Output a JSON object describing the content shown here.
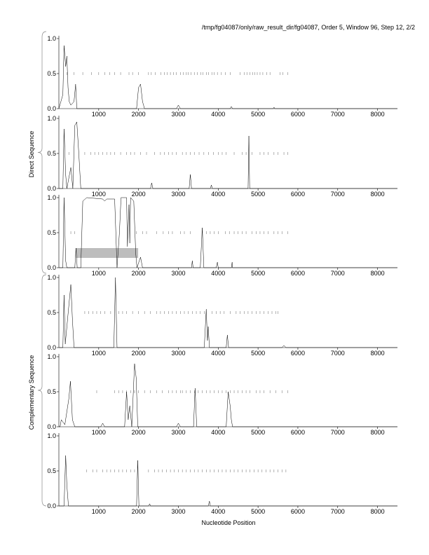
{
  "title": "/tmp/fg04087/only/raw_result_dir/fg04087, Order 5, Window 96, Step 12, 2/2",
  "xlabel": "Nucleotide Position",
  "group_labels": [
    "Direct Sequence",
    "Complementary Sequence"
  ],
  "chart_data": {
    "type": "line",
    "title": "/tmp/fg04087/only/raw_result_dir/fg04087, Order 5, Window 96, Step 12, 2/2",
    "xlabel": "Nucleotide Position",
    "xlim": [
      0,
      8500
    ],
    "ylim": [
      0,
      1
    ],
    "xticks": [
      1000,
      2000,
      3000,
      4000,
      5000,
      6000,
      7000,
      8000
    ],
    "yticks": [
      "0.0",
      "0.5",
      "1.0"
    ],
    "panels": [
      {
        "group": "Direct Sequence",
        "trace": [
          [
            0,
            0
          ],
          [
            100,
            0.2
          ],
          [
            130,
            0.9
          ],
          [
            170,
            0.6
          ],
          [
            200,
            0.75
          ],
          [
            230,
            0.3
          ],
          [
            260,
            0.1
          ],
          [
            300,
            0.05
          ],
          [
            380,
            0.1
          ],
          [
            420,
            0.35
          ],
          [
            450,
            0
          ],
          [
            1950,
            0
          ],
          [
            2000,
            0.3
          ],
          [
            2050,
            0.35
          ],
          [
            2100,
            0.1
          ],
          [
            2150,
            0
          ],
          [
            2950,
            0
          ],
          [
            3000,
            0.05
          ],
          [
            3050,
            0
          ],
          [
            4300,
            0
          ],
          [
            4330,
            0.03
          ],
          [
            4360,
            0
          ],
          [
            5380,
            0
          ],
          [
            5400,
            0.02
          ],
          [
            5420,
            0
          ],
          [
            8500,
            0
          ]
        ],
        "ticks": [
          200,
          380,
          600,
          820,
          1000,
          1150,
          1280,
          1400,
          1550,
          1760,
          1850,
          2000,
          2250,
          2320,
          2420,
          2560,
          2650,
          2720,
          2800,
          2880,
          2950,
          3050,
          3120,
          3200,
          3250,
          3320,
          3400,
          3480,
          3560,
          3620,
          3700,
          3760,
          3840,
          3900,
          3980,
          4080,
          4180,
          4300,
          4550,
          4650,
          4720,
          4800,
          4870,
          4920,
          4980,
          5050,
          5120,
          5220,
          5300,
          5550,
          5620,
          5750
        ]
      },
      {
        "group": "Direct Sequence",
        "trace": [
          [
            0,
            0
          ],
          [
            100,
            0
          ],
          [
            130,
            0.85
          ],
          [
            170,
            0.2
          ],
          [
            200,
            0
          ],
          [
            300,
            0.3
          ],
          [
            350,
            0
          ],
          [
            400,
            0.9
          ],
          [
            450,
            0.95
          ],
          [
            500,
            0.5
          ],
          [
            550,
            0
          ],
          [
            2300,
            0
          ],
          [
            2330,
            0.08
          ],
          [
            2360,
            0
          ],
          [
            3270,
            0
          ],
          [
            3300,
            0.2
          ],
          [
            3330,
            0
          ],
          [
            3800,
            0
          ],
          [
            3830,
            0.05
          ],
          [
            3850,
            0
          ],
          [
            4750,
            0
          ],
          [
            4770,
            0.75
          ],
          [
            4790,
            0
          ],
          [
            8500,
            0
          ]
        ],
        "ticks": [
          250,
          650,
          800,
          900,
          1000,
          1100,
          1200,
          1300,
          1400,
          1550,
          1700,
          1800,
          1900,
          2050,
          2200,
          2400,
          2550,
          2650,
          2750,
          2850,
          2950,
          3100,
          3200,
          3300,
          3400,
          3520,
          3640,
          3760,
          3880,
          4000,
          4100,
          4200,
          4400,
          4600,
          4700,
          4850,
          5050,
          5150,
          5250,
          5400,
          5500,
          5650,
          5750
        ]
      },
      {
        "group": "Direct Sequence",
        "trace": [
          [
            0,
            0
          ],
          [
            100,
            0
          ],
          [
            130,
            1
          ],
          [
            170,
            0.1
          ],
          [
            200,
            0
          ],
          [
            400,
            0
          ],
          [
            430,
            0.28
          ],
          [
            460,
            0
          ],
          [
            550,
            0
          ],
          [
            600,
            0.95
          ],
          [
            700,
            1
          ],
          [
            1100,
            0.98
          ],
          [
            1150,
            0.95
          ],
          [
            1200,
            0.98
          ],
          [
            1400,
            0.98
          ],
          [
            1430,
            0.5
          ],
          [
            1460,
            0
          ],
          [
            1520,
            0.5
          ],
          [
            1560,
            1
          ],
          [
            1700,
            1
          ],
          [
            1720,
            0.3
          ],
          [
            1760,
            0.9
          ],
          [
            1780,
            0.35
          ],
          [
            1800,
            1
          ],
          [
            1880,
            0.95
          ],
          [
            1930,
            0.2
          ],
          [
            1960,
            0
          ],
          [
            2050,
            0.15
          ],
          [
            2100,
            0
          ],
          [
            3330,
            0
          ],
          [
            3350,
            0.1
          ],
          [
            3370,
            0
          ],
          [
            3550,
            0
          ],
          [
            3600,
            0.57
          ],
          [
            3640,
            0
          ],
          [
            3950,
            0
          ],
          [
            3980,
            0.08
          ],
          [
            4000,
            0
          ],
          [
            4330,
            0
          ],
          [
            4350,
            0.08
          ],
          [
            4360,
            0
          ],
          [
            8500,
            0
          ]
        ],
        "ticks": [
          300,
          400,
          1950,
          2100,
          2200,
          2450,
          2620,
          2750,
          2850,
          3050,
          3150,
          3300,
          3700,
          3800,
          3900,
          4000,
          4180,
          4280,
          4400,
          4500,
          4600,
          4700,
          4850,
          4950,
          5050,
          5150,
          5250,
          5400,
          5500,
          5600,
          5750
        ],
        "highlight": {
          "x": [
            430,
            1990
          ],
          "y": [
            0.14,
            0.28
          ]
        }
      },
      {
        "group": "Complementary Sequence",
        "trace": [
          [
            0,
            0
          ],
          [
            100,
            0
          ],
          [
            130,
            0.75
          ],
          [
            160,
            0.05
          ],
          [
            250,
            0.6
          ],
          [
            300,
            0.9
          ],
          [
            340,
            0.4
          ],
          [
            380,
            0
          ],
          [
            1380,
            0
          ],
          [
            1420,
            1
          ],
          [
            1460,
            0
          ],
          [
            3650,
            0
          ],
          [
            3700,
            0.55
          ],
          [
            3730,
            0.1
          ],
          [
            3750,
            0.3
          ],
          [
            3780,
            0
          ],
          [
            4200,
            0
          ],
          [
            4230,
            0.18
          ],
          [
            4260,
            0
          ],
          [
            5600,
            0
          ],
          [
            5650,
            0.03
          ],
          [
            5700,
            0
          ],
          [
            8500,
            0
          ]
        ],
        "ticks": [
          650,
          750,
          850,
          950,
          1050,
          1150,
          1300,
          1500,
          1600,
          1700,
          1850,
          2000,
          2150,
          2300,
          2450,
          2550,
          2650,
          2750,
          2850,
          2950,
          3050,
          3150,
          3250,
          3350,
          3450,
          3550,
          3650,
          3850,
          3950,
          4050,
          4150,
          4300,
          4450,
          4550,
          4650,
          4750,
          4850,
          4950,
          5050,
          5150,
          5250,
          5350,
          5450,
          5500
        ]
      },
      {
        "group": "Complementary Sequence",
        "trace": [
          [
            0,
            0
          ],
          [
            30,
            0
          ],
          [
            60,
            0.1
          ],
          [
            150,
            0.03
          ],
          [
            250,
            0.4
          ],
          [
            290,
            0.65
          ],
          [
            340,
            0.1
          ],
          [
            400,
            0
          ],
          [
            1050,
            0
          ],
          [
            1100,
            0.05
          ],
          [
            1150,
            0
          ],
          [
            1650,
            0
          ],
          [
            1700,
            0.5
          ],
          [
            1740,
            0.1
          ],
          [
            1780,
            0.3
          ],
          [
            1830,
            0
          ],
          [
            1900,
            0.9
          ],
          [
            1940,
            0.7
          ],
          [
            1980,
            0
          ],
          [
            2950,
            0
          ],
          [
            3000,
            0.05
          ],
          [
            3050,
            0
          ],
          [
            3380,
            0
          ],
          [
            3420,
            0.55
          ],
          [
            3460,
            0
          ],
          [
            4200,
            0
          ],
          [
            4250,
            0.5
          ],
          [
            4300,
            0.3
          ],
          [
            4330,
            0.1
          ],
          [
            4360,
            0
          ],
          [
            8500,
            0
          ]
        ],
        "ticks": [
          950,
          1400,
          1500,
          1600,
          1700,
          1800,
          1900,
          2000,
          2150,
          2300,
          2450,
          2600,
          2750,
          2850,
          2950,
          3050,
          3100,
          3200,
          3300,
          3400,
          3500,
          3600,
          3700,
          3800,
          3900,
          4000,
          4100,
          4200,
          4300,
          4400,
          4500,
          4600,
          4700,
          4800,
          4950,
          5050,
          5150,
          5300,
          5450,
          5600,
          5750
        ]
      },
      {
        "group": "Complementary Sequence",
        "trace": [
          [
            0,
            0
          ],
          [
            130,
            0
          ],
          [
            170,
            0.72
          ],
          [
            200,
            0.3
          ],
          [
            240,
            0
          ],
          [
            1950,
            0
          ],
          [
            1980,
            0.65
          ],
          [
            2010,
            0
          ],
          [
            2250,
            0
          ],
          [
            2280,
            0.03
          ],
          [
            2300,
            0
          ],
          [
            3750,
            0
          ],
          [
            3780,
            0.07
          ],
          [
            3800,
            0
          ],
          [
            8500,
            0
          ]
        ],
        "ticks": [
          700,
          850,
          950,
          1100,
          1200,
          1300,
          1400,
          1500,
          1600,
          1700,
          1800,
          1900,
          2250,
          2400,
          2500,
          2600,
          2700,
          2800,
          2900,
          3000,
          3100,
          3200,
          3300,
          3400,
          3500,
          3600,
          3700,
          3800,
          3900,
          4000,
          4100,
          4200,
          4300,
          4400,
          4500,
          4600,
          4700,
          4800,
          4900,
          5000,
          5100,
          5200,
          5300,
          5400,
          5500,
          5600,
          5700
        ]
      }
    ]
  }
}
